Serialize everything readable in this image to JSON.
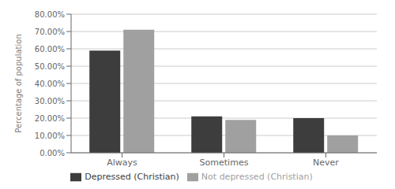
{
  "chart_data": {
    "type": "bar",
    "ylabel": "Percentage of population",
    "categories": [
      "Always",
      "Sometimes",
      "Never"
    ],
    "series": [
      {
        "name": "Depressed (Christian)",
        "color": "#3d3d3d",
        "values": [
          59.0,
          21.0,
          20.0
        ]
      },
      {
        "name": "Not depressed (Christian)",
        "color": "#a0a0a0",
        "values": [
          71.0,
          19.0,
          10.0
        ]
      }
    ],
    "ylim": [
      0,
      80
    ],
    "yticks": [
      {
        "value": 0,
        "label": "0.00%"
      },
      {
        "value": 10,
        "label": "10.00%"
      },
      {
        "value": 20,
        "label": "20.00%"
      },
      {
        "value": 30,
        "label": "30.00%"
      },
      {
        "value": 40,
        "label": "40.00%"
      },
      {
        "value": 50,
        "label": "50.00%"
      },
      {
        "value": 60,
        "label": "60.00%"
      },
      {
        "value": 70,
        "label": "70.00%"
      },
      {
        "value": 80,
        "label": "80.00%"
      }
    ],
    "grid": true,
    "legend": "bottom"
  }
}
